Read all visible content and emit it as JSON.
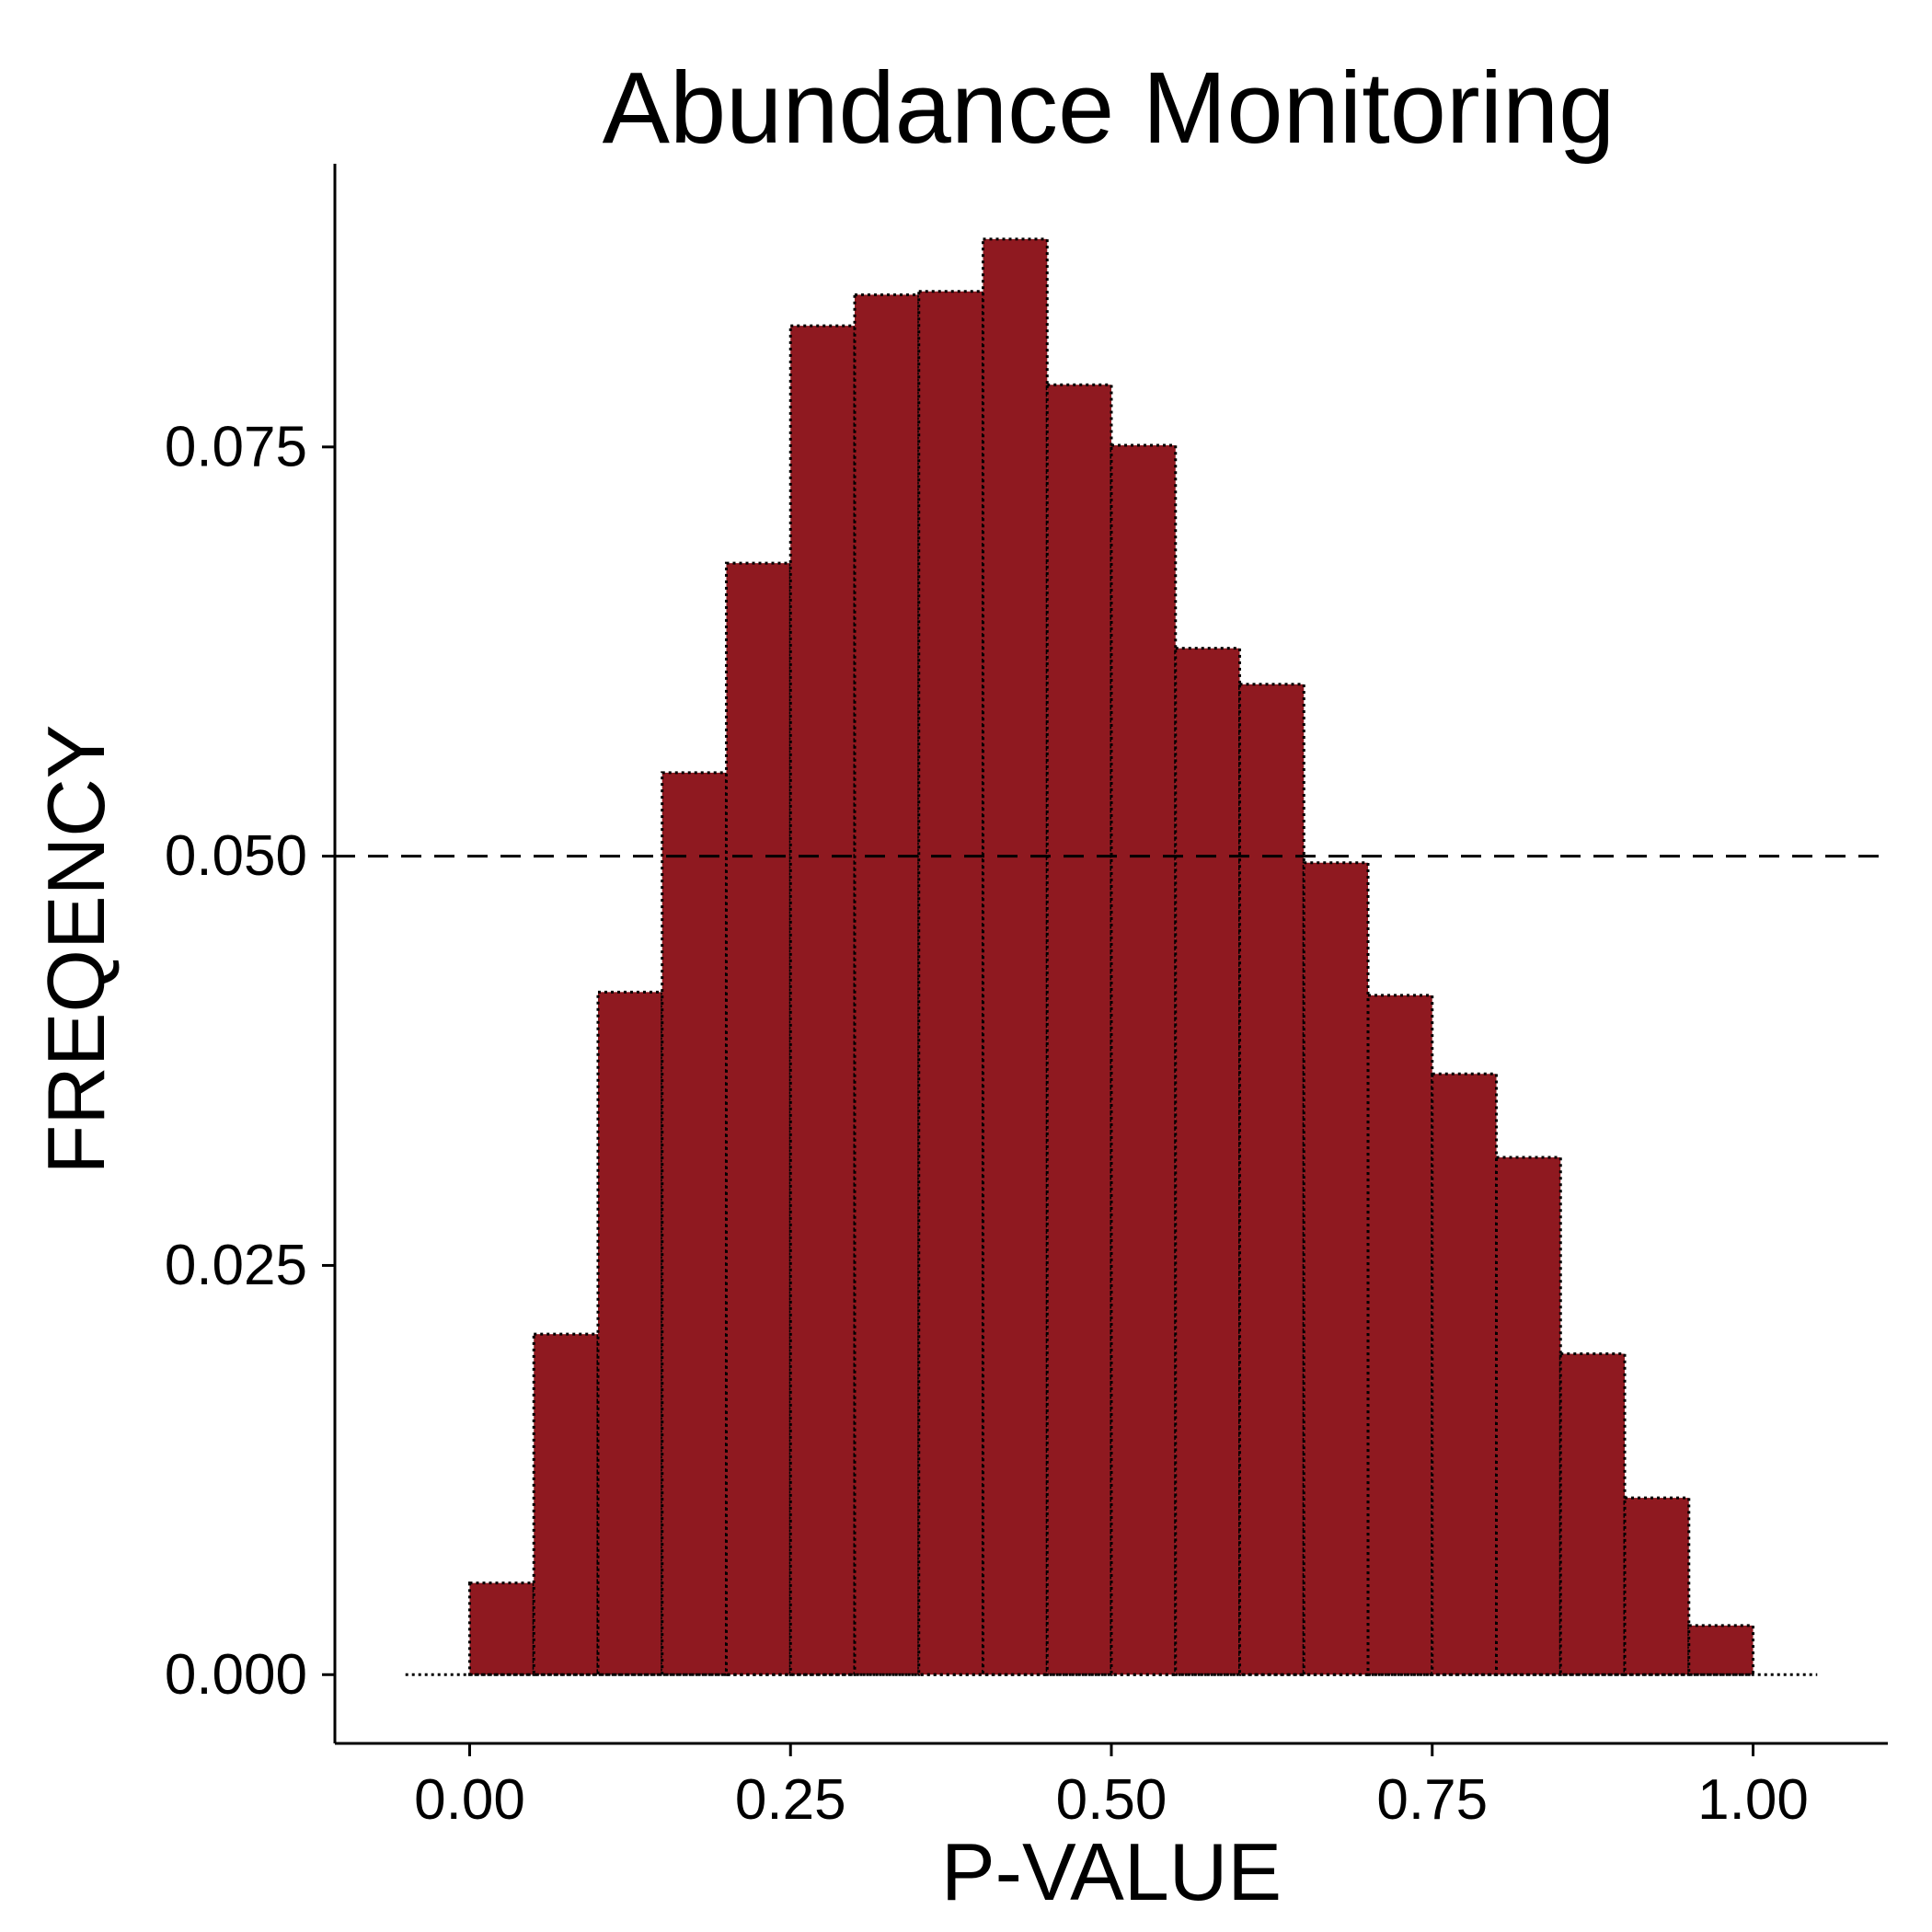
{
  "chart_data": {
    "type": "histogram",
    "title": "Abundance Monitoring",
    "xlabel": "P-VALUE",
    "ylabel": "FREQENCY",
    "xlim": [
      -0.105,
      1.105
    ],
    "ylim": [
      -0.0042,
      0.0923
    ],
    "x_ticks": [
      0.0,
      0.25,
      0.5,
      0.75,
      1.0
    ],
    "x_tick_labels": [
      "0.00",
      "0.25",
      "0.50",
      "0.75",
      "1.00"
    ],
    "y_ticks": [
      0.0,
      0.025,
      0.05,
      0.075
    ],
    "y_tick_labels": [
      "0.000",
      "0.025",
      "0.050",
      "0.075"
    ],
    "bin_width": 0.05,
    "bins": [
      {
        "x0": 0.0,
        "x1": 0.05,
        "value": 0.0056
      },
      {
        "x0": 0.05,
        "x1": 0.1,
        "value": 0.0208
      },
      {
        "x0": 0.1,
        "x1": 0.15,
        "value": 0.0417
      },
      {
        "x0": 0.15,
        "x1": 0.2,
        "value": 0.0551
      },
      {
        "x0": 0.2,
        "x1": 0.25,
        "value": 0.0679
      },
      {
        "x0": 0.25,
        "x1": 0.3,
        "value": 0.0824
      },
      {
        "x0": 0.3,
        "x1": 0.35,
        "value": 0.0843
      },
      {
        "x0": 0.35,
        "x1": 0.4,
        "value": 0.0845
      },
      {
        "x0": 0.4,
        "x1": 0.45,
        "value": 0.0877
      },
      {
        "x0": 0.45,
        "x1": 0.5,
        "value": 0.0788
      },
      {
        "x0": 0.5,
        "x1": 0.55,
        "value": 0.0751
      },
      {
        "x0": 0.55,
        "x1": 0.6,
        "value": 0.0627
      },
      {
        "x0": 0.6,
        "x1": 0.65,
        "value": 0.0605
      },
      {
        "x0": 0.65,
        "x1": 0.7,
        "value": 0.0496
      },
      {
        "x0": 0.7,
        "x1": 0.75,
        "value": 0.0415
      },
      {
        "x0": 0.75,
        "x1": 0.8,
        "value": 0.0367
      },
      {
        "x0": 0.8,
        "x1": 0.85,
        "value": 0.0316
      },
      {
        "x0": 0.85,
        "x1": 0.9,
        "value": 0.0196
      },
      {
        "x0": 0.9,
        "x1": 0.95,
        "value": 0.0108
      },
      {
        "x0": 0.95,
        "x1": 1.0,
        "value": 0.003
      }
    ],
    "baseline_dotted_range": [
      -0.05,
      1.05
    ],
    "reference_line": {
      "value": 0.05,
      "style": "dashed"
    },
    "grid": false,
    "colors": {
      "bar_fill": "#8f1920",
      "bar_border": "#000000",
      "axis": "#000000",
      "reference_line": "#000000",
      "background": "#ffffff"
    }
  }
}
